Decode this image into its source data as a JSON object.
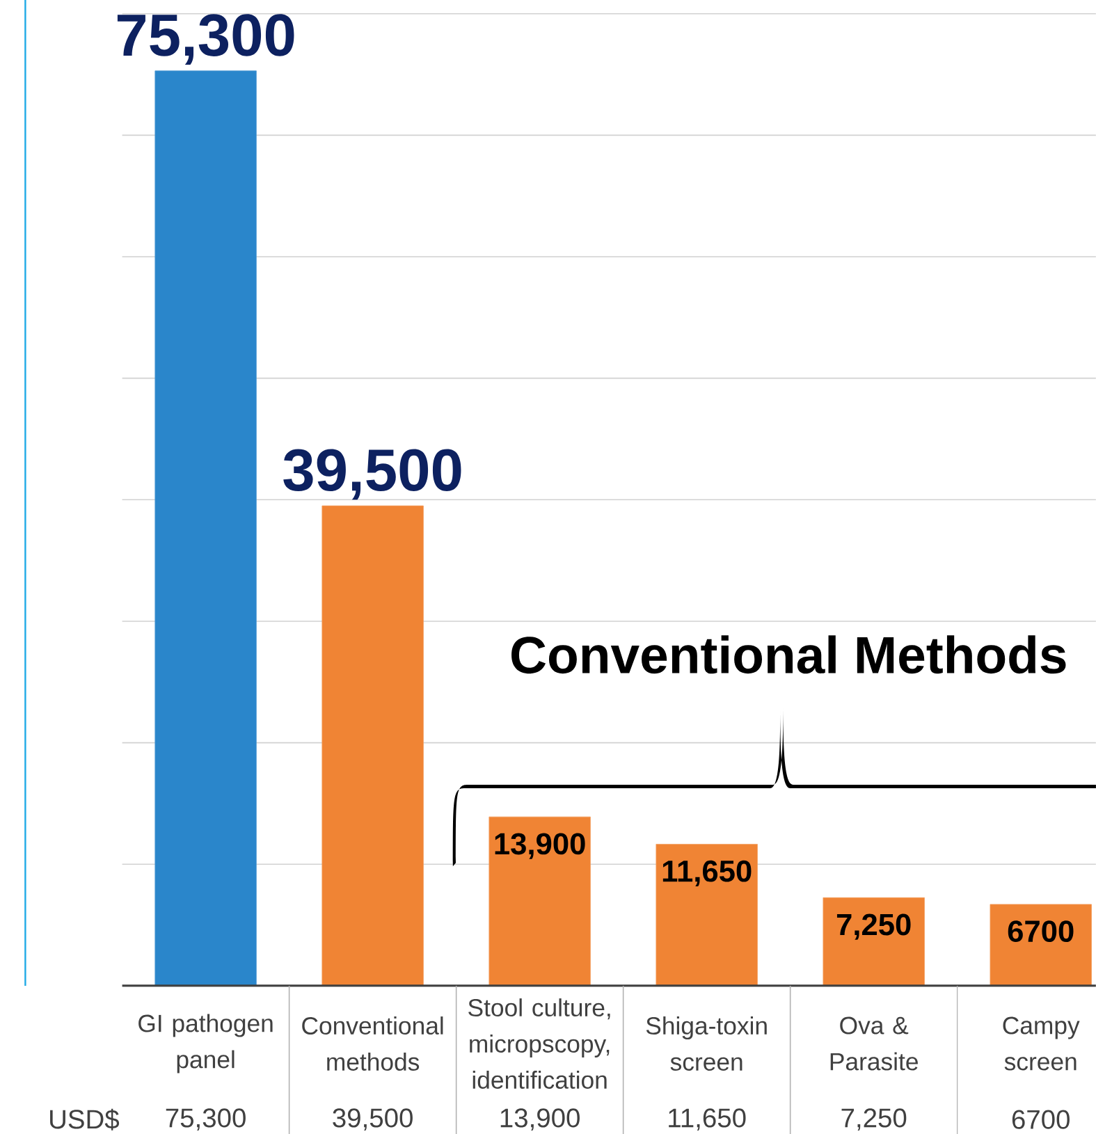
{
  "chart_data": {
    "type": "bar",
    "categories": [
      "GI pathogen panel",
      "Conventional methods",
      "Stool culture, micropscopy, identification",
      "Shiga-toxin screen",
      "Ova & Parasite",
      "Campy screen"
    ],
    "values": [
      75300,
      39500,
      13900,
      11650,
      7250,
      6700
    ],
    "colors": [
      "#2a86cb",
      "#f08434",
      "#f08434",
      "#f08434",
      "#f08434",
      "#f08434"
    ],
    "value_labels": [
      "75,300",
      "39,500",
      "13,900",
      "11,650",
      "7,250",
      "6700"
    ],
    "ylim": [
      0,
      80000
    ],
    "yticks": [
      {
        "value": 0,
        "label": null
      },
      {
        "value": 10000,
        "label": null
      },
      {
        "value": 20000,
        "label": null
      },
      {
        "value": 30000,
        "label": null
      },
      {
        "value": 40000,
        "label": null
      },
      {
        "value": 50000,
        "label": null
      },
      {
        "value": 60000,
        "label": null
      },
      {
        "value": 70000,
        "label": null
      },
      {
        "value": 80000,
        "label": null
      }
    ],
    "grid": "y",
    "annotations": [
      "Conventional Methods",
      "USD$"
    ]
  }
}
